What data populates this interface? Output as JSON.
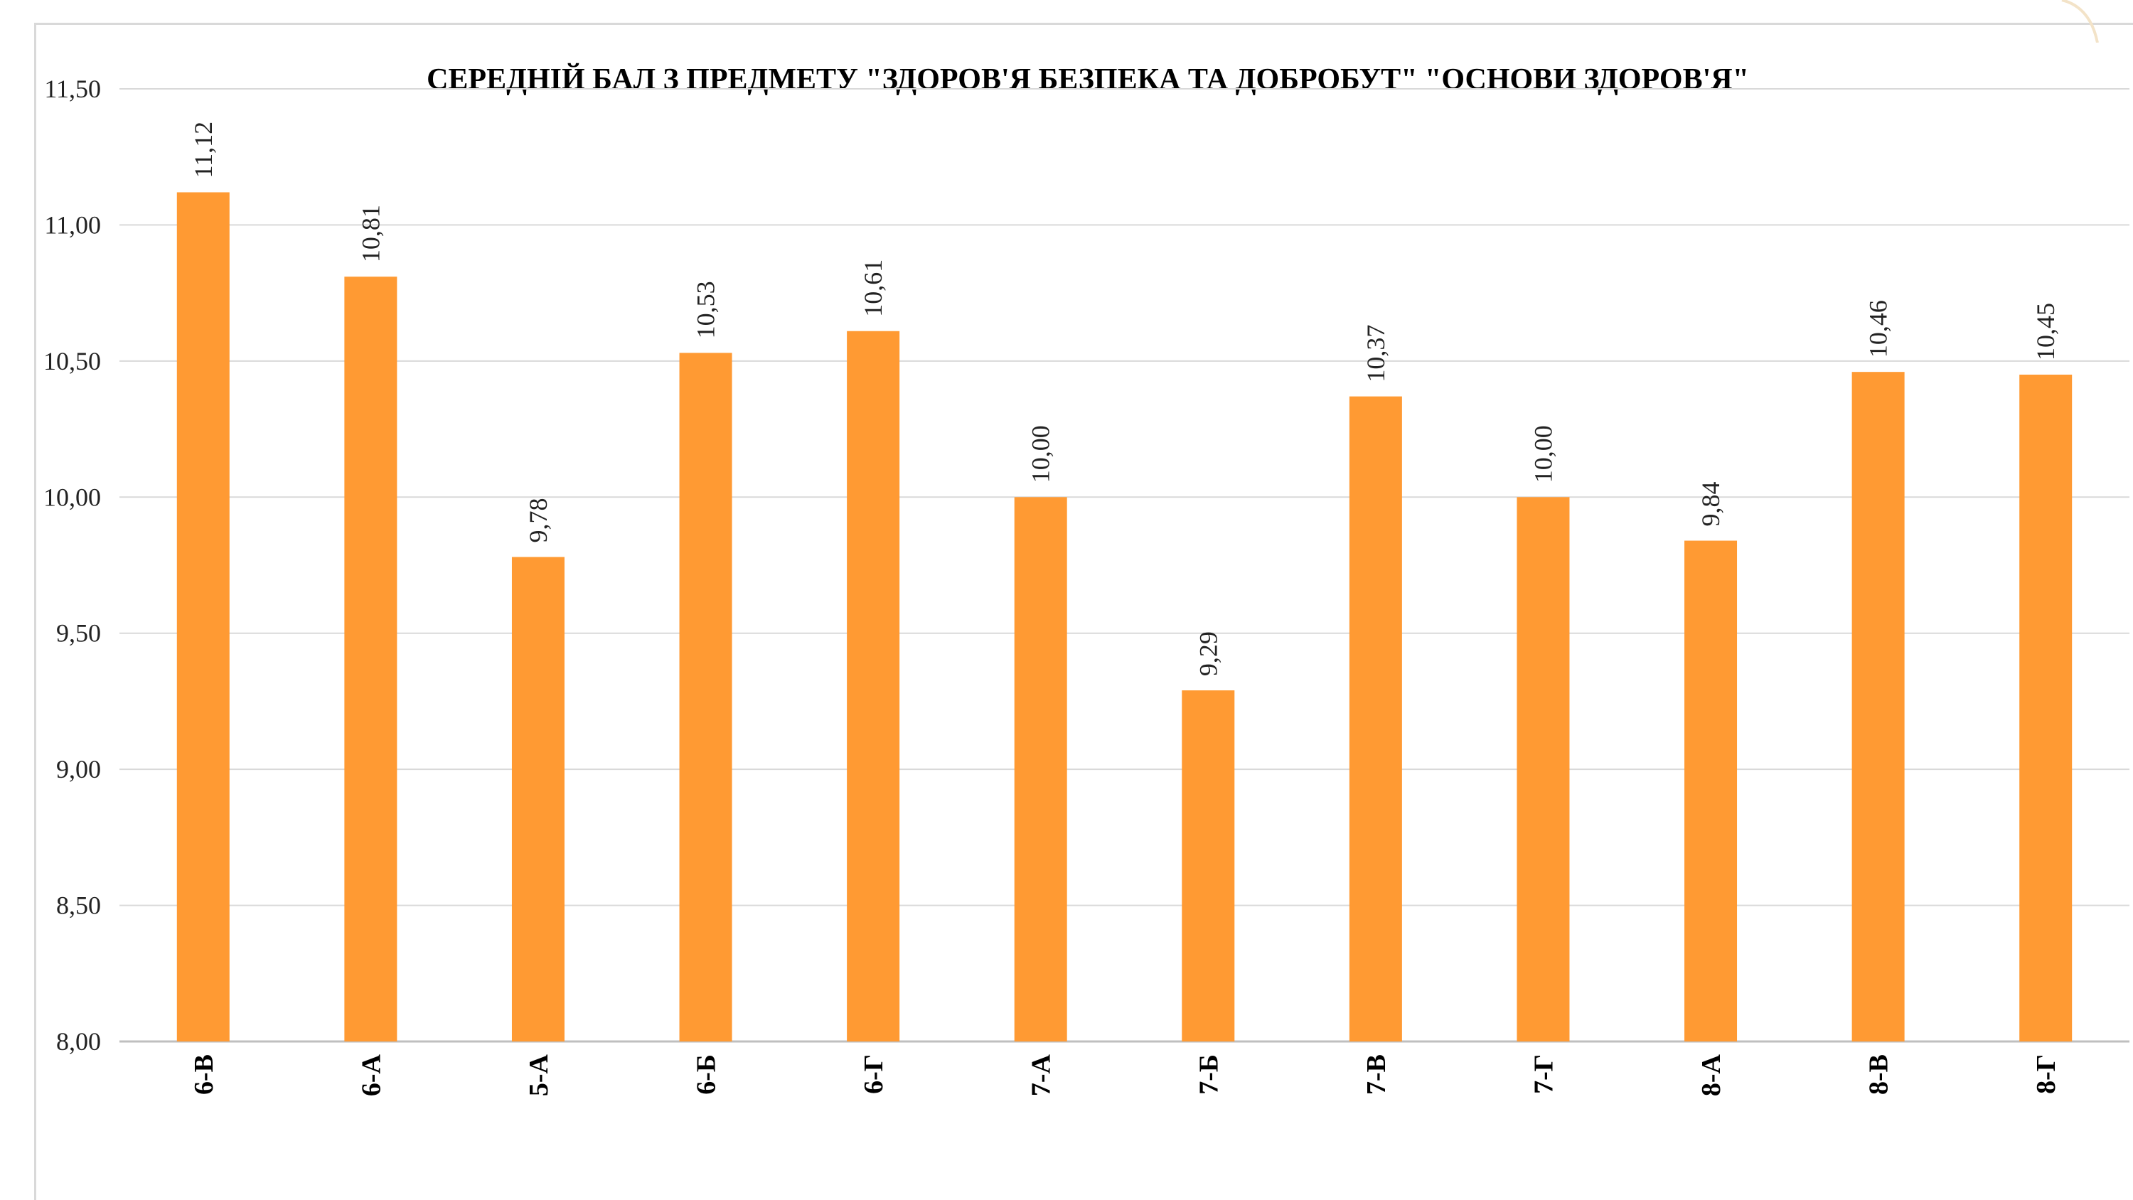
{
  "chart_data": {
    "type": "bar",
    "title": "СЕРЕДНІЙ БАЛ З ПРЕДМЕТУ \"ЗДОРОВ'Я БЕЗПЕКА ТА ДОБРОБУТ\" \"ОСНОВИ ЗДОРОВ'Я\"",
    "xlabel": "",
    "ylabel": "",
    "categories": [
      "6-В",
      "6-А",
      "5-А",
      "6-Б",
      "6-Г",
      "7-А",
      "7-Б",
      "7-В",
      "7-Г",
      "8-А",
      "8-В",
      "8-Г"
    ],
    "values": [
      11.12,
      10.81,
      9.78,
      10.53,
      10.61,
      10.0,
      9.29,
      10.37,
      10.0,
      9.84,
      10.46,
      10.45
    ],
    "value_labels": [
      "11,12",
      "10,81",
      "9,78",
      "10,53",
      "10,61",
      "10,00",
      "9,29",
      "10,37",
      "10,00",
      "9,84",
      "10,46",
      "10,45"
    ],
    "ylim": [
      8.0,
      11.5
    ],
    "yticks": [
      8.0,
      8.5,
      9.0,
      9.5,
      10.0,
      10.5,
      11.0,
      11.5
    ],
    "ytick_labels": [
      "8,00",
      "8,50",
      "9,00",
      "9,50",
      "10,00",
      "10,50",
      "11,00",
      "11,50"
    ],
    "grid": true,
    "legend": "none",
    "colors": {
      "bar": "#FF9A33",
      "grid": "#d9d9d9",
      "axis": "#bfbfbf"
    }
  }
}
